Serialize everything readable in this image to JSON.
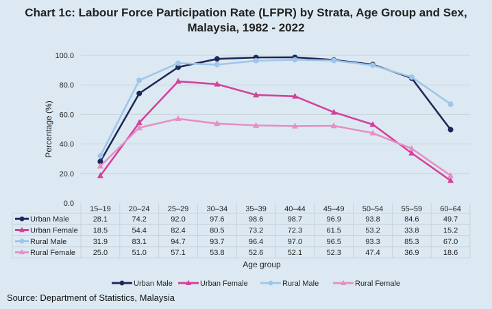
{
  "chart_data": {
    "type": "line",
    "title_line1": "Chart 1c: Labour Force Participation Rate (LFPR) by Strata, Age Group and Sex,",
    "title_line2": "Malaysia, 1982 - 2022",
    "xlabel": "Age group",
    "ylabel": "Percentage (%)",
    "ylim": [
      0,
      100
    ],
    "yticks": [
      "0.0",
      "20.0",
      "40.0",
      "60.0",
      "80.0",
      "100.0"
    ],
    "grid": true,
    "legend_position": "bottom",
    "data_table": true,
    "categories": [
      "15–19",
      "20–24",
      "25–29",
      "30–34",
      "35–39",
      "40–44",
      "45–49",
      "50–54",
      "55–59",
      "60–64"
    ],
    "series": [
      {
        "name": "Urban Male",
        "color": "#1e2858",
        "marker": "circle",
        "values": [
          28.1,
          74.2,
          92.0,
          97.6,
          98.6,
          98.7,
          96.9,
          93.8,
          84.6,
          49.7
        ]
      },
      {
        "name": "Urban Female",
        "color": "#d3419a",
        "marker": "triangle",
        "values": [
          18.5,
          54.4,
          82.4,
          80.5,
          73.2,
          72.3,
          61.5,
          53.2,
          33.8,
          15.2
        ]
      },
      {
        "name": "Rural Male",
        "color": "#9fc5ea",
        "marker": "circle",
        "values": [
          31.9,
          83.1,
          94.7,
          93.7,
          96.4,
          97.0,
          96.5,
          93.3,
          85.3,
          67.0
        ]
      },
      {
        "name": "Rural Female",
        "color": "#e58fc3",
        "marker": "triangle",
        "values": [
          25.0,
          51.0,
          57.1,
          53.8,
          52.6,
          52.1,
          52.3,
          47.4,
          36.9,
          18.6
        ]
      }
    ],
    "table_values": [
      [
        "28.1",
        "74.2",
        "92.0",
        "97.6",
        "98.6",
        "98.7",
        "96.9",
        "93.8",
        "84.6",
        "49.7"
      ],
      [
        "18.5",
        "54.4",
        "82.4",
        "80.5",
        "73.2",
        "72.3",
        "61.5",
        "53.2",
        "33.8",
        "15.2"
      ],
      [
        "31.9",
        "83.1",
        "94.7",
        "93.7",
        "96.4",
        "97.0",
        "96.5",
        "93.3",
        "85.3",
        "67.0"
      ],
      [
        "25.0",
        "51.0",
        "57.1",
        "53.8",
        "52.6",
        "52.1",
        "52.3",
        "47.4",
        "36.9",
        "18.6"
      ]
    ]
  },
  "source": "Source: Department of Statistics, Malaysia"
}
